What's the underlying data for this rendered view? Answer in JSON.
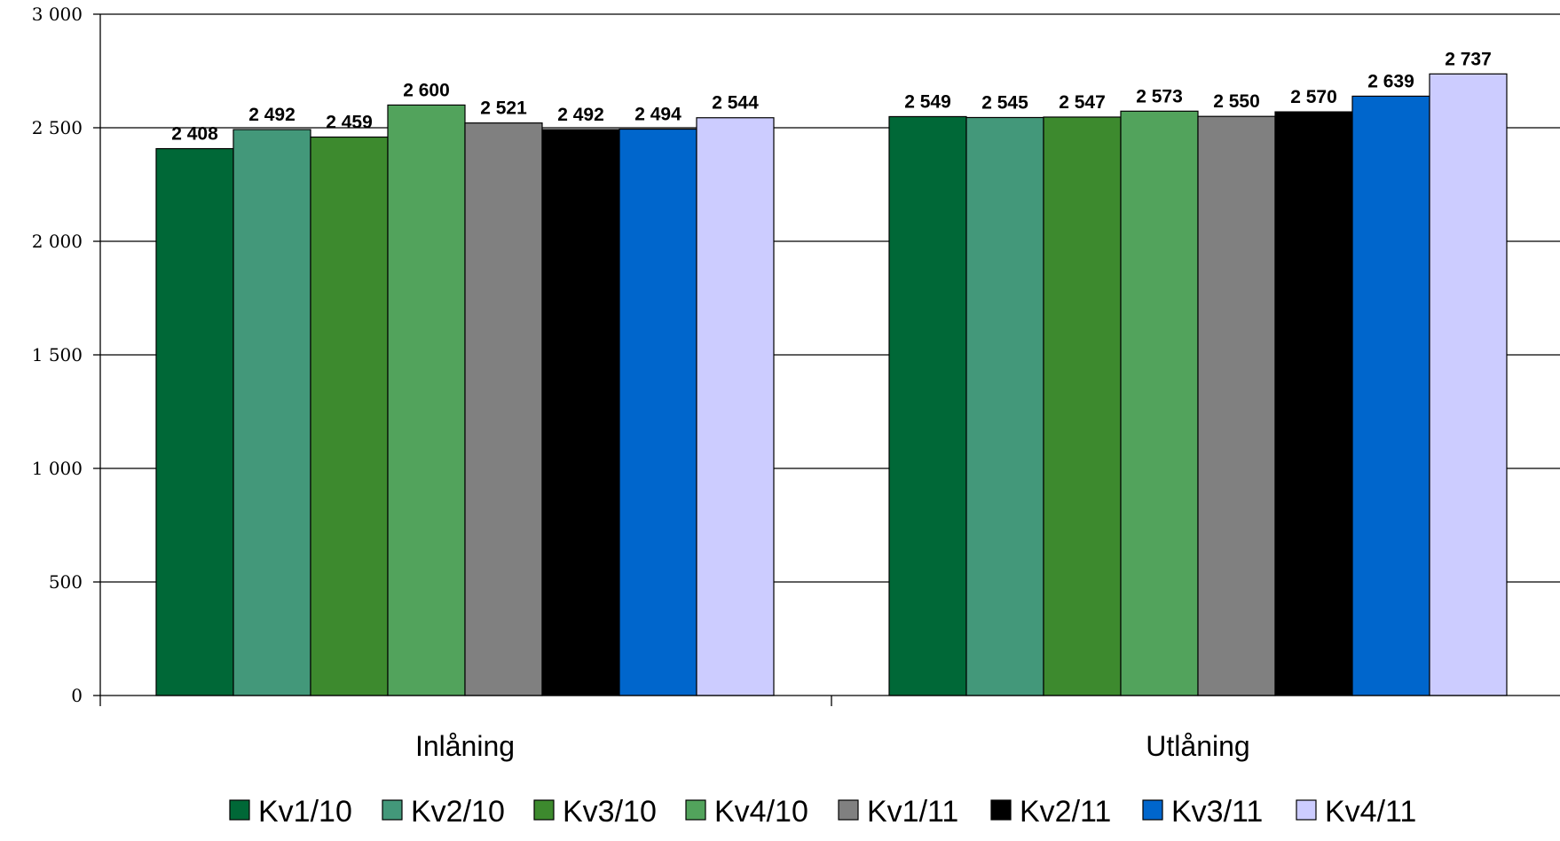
{
  "chart_data": {
    "type": "bar",
    "title": "",
    "xlabel": "",
    "ylabel": "",
    "categories": [
      "Inlåning",
      "Utlåning"
    ],
    "series": [
      {
        "name": "Kv1/10",
        "color": "#006837",
        "values": [
          2408,
          2549
        ],
        "labels": [
          "2 408",
          "2 549"
        ]
      },
      {
        "name": "Kv2/10",
        "color": "#43987A",
        "values": [
          2492,
          2545
        ],
        "labels": [
          "2 492",
          "2 545"
        ]
      },
      {
        "name": "Kv3/10",
        "color": "#3D8A2E",
        "values": [
          2459,
          2547
        ],
        "labels": [
          "2 459",
          "2 547"
        ]
      },
      {
        "name": "Kv4/10",
        "color": "#52A35C",
        "values": [
          2600,
          2573
        ],
        "labels": [
          "2 600",
          "2 573"
        ]
      },
      {
        "name": "Kv1/11",
        "color": "#808080",
        "values": [
          2521,
          2550
        ],
        "labels": [
          "2 521",
          "2 550"
        ]
      },
      {
        "name": "Kv2/11",
        "color": "#000000",
        "values": [
          2492,
          2570
        ],
        "labels": [
          "2 492",
          "2 570"
        ]
      },
      {
        "name": "Kv3/11",
        "color": "#0066CC",
        "values": [
          2494,
          2639
        ],
        "labels": [
          "2 494",
          "2 639"
        ]
      },
      {
        "name": "Kv4/11",
        "color": "#CCCCFF",
        "values": [
          2544,
          2737
        ],
        "labels": [
          "2 544",
          "2 737"
        ]
      }
    ],
    "ylim": [
      0,
      3000
    ],
    "yticks": [
      0,
      500,
      1000,
      1500,
      2000,
      2500,
      3000
    ],
    "ytick_labels": [
      "0",
      "500",
      "1 000",
      "1 500",
      "2 000",
      "2 500",
      "3 000"
    ],
    "grid": true,
    "legend": "bottom"
  }
}
